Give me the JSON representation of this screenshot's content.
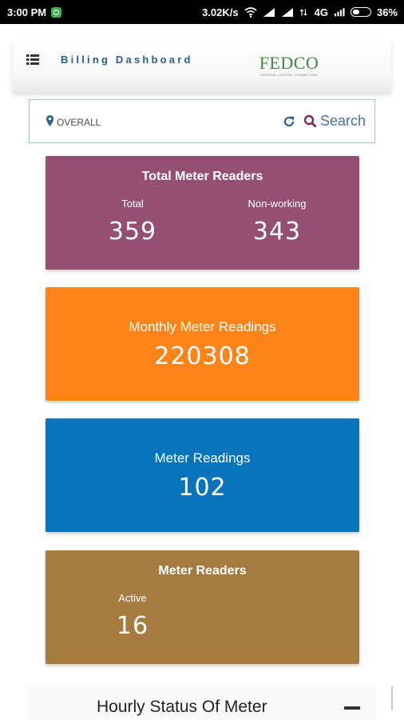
{
  "status_bar": {
    "time": "3:00 PM",
    "network_speed": "3.02K/s",
    "network_type": "4G",
    "battery": "36%",
    "icons": [
      "app-notification-icon",
      "wifi-icon",
      "signal-icon",
      "signal-icon",
      "data-arrows-icon",
      "battery-icon"
    ]
  },
  "header": {
    "title": "Billing Dashboard",
    "logo_text": "FEDCO",
    "logo_subtext": "FEDERAL CAPITAL CONNECTION",
    "menu_icon": "list-menu-icon"
  },
  "search": {
    "location": "OVERALL",
    "button_label": "Search",
    "icons": [
      "map-pin-icon",
      "refresh-icon",
      "search-icon"
    ]
  },
  "cards": {
    "total_meter_readers": {
      "title": "Total Meter Readers",
      "total_label": "Total",
      "total_value": "359",
      "nonworking_label": "Non-working",
      "nonworking_value": "343",
      "color": "#954f72"
    },
    "monthly_meter_readings": {
      "title": "Monthly Meter Readings",
      "value": "220308",
      "color": "#fd8419"
    },
    "meter_readings": {
      "title": "Meter Readings",
      "value": "102",
      "color": "#0874bb"
    },
    "meter_readers": {
      "title": "Meter Readers",
      "active_label": "Active",
      "active_value": "16",
      "color": "#a67b40"
    }
  },
  "bottom_panel": {
    "title": "Hourly Status Of Meter"
  }
}
